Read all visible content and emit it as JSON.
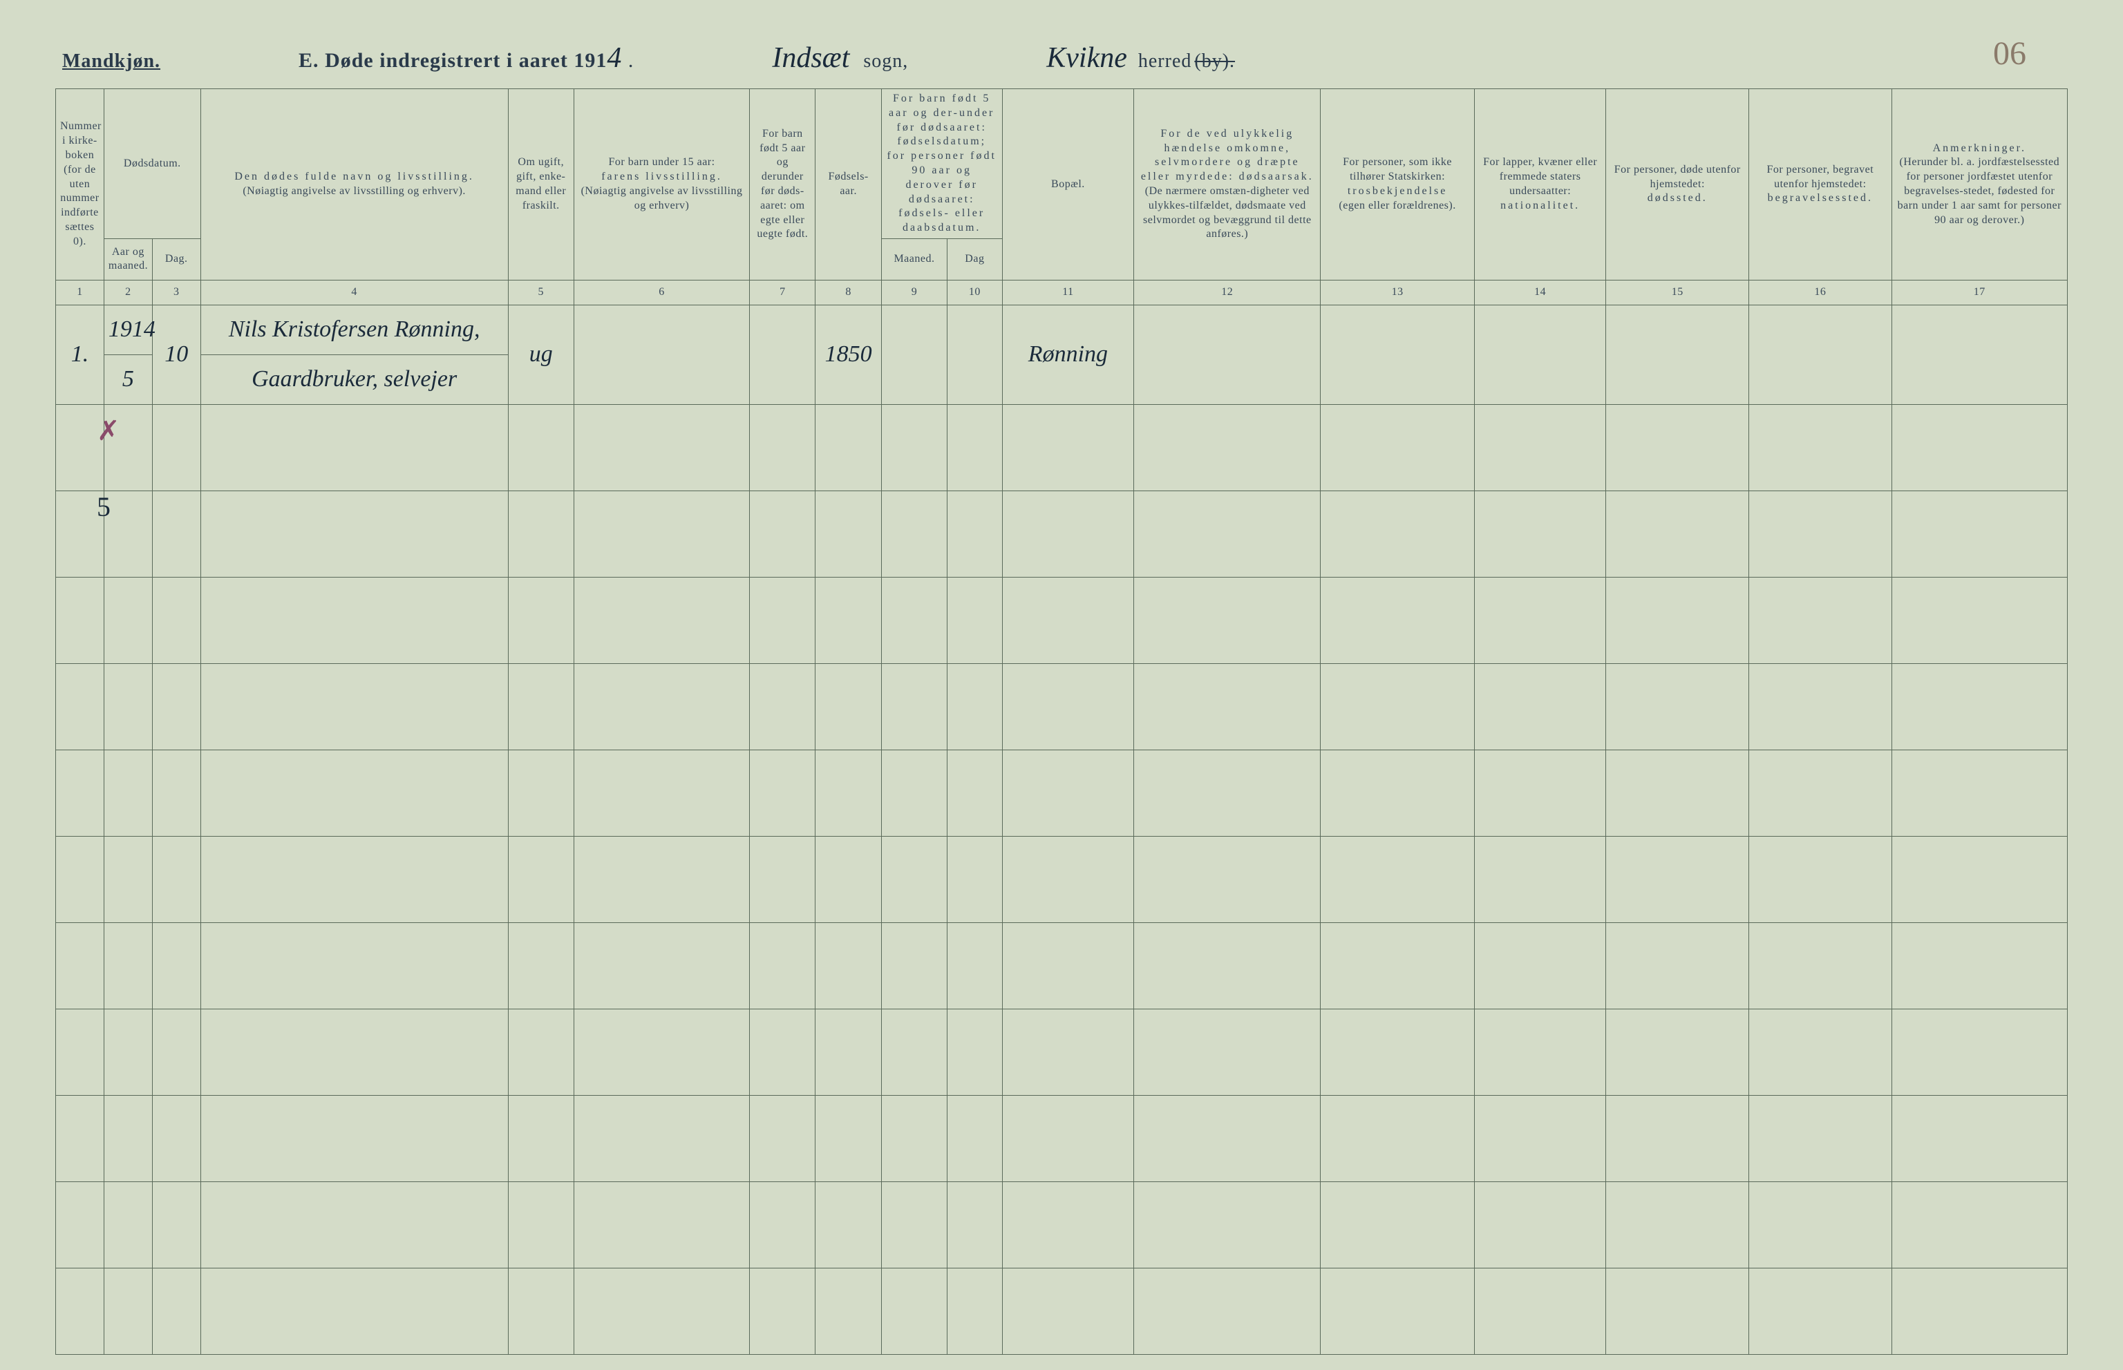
{
  "header": {
    "gender_label": "Mandkjøn.",
    "title_prefix": "E.",
    "title_text": "Døde indregistrert i aaret 191",
    "year_suffix": "4",
    "sogn_value": "Indsæt",
    "sogn_label": "sogn,",
    "herred_value": "Kvikne",
    "herred_label": "herred",
    "herred_struck": "(by).",
    "page_number": "06"
  },
  "columns": {
    "c1": {
      "header": "Nummer i kirke-boken (for de uten nummer indførte sættes 0).",
      "num": "1"
    },
    "c2_3": {
      "header": "Dødsdatum.",
      "sub_a": "Aar og maaned.",
      "sub_b": "Dag.",
      "num_a": "2",
      "num_b": "3"
    },
    "c4": {
      "header": "Den dødes fulde navn og livsstilling.",
      "sub": "(Nøiagtig angivelse av livsstilling og erhverv).",
      "num": "4"
    },
    "c5": {
      "header": "Om ugift, gift, enke-mand eller fraskilt.",
      "num": "5"
    },
    "c6": {
      "header": "For barn under 15 aar:",
      "sub": "farens livsstilling.",
      "sub2": "(Nøiagtig angivelse av livsstilling og erhverv)",
      "num": "6"
    },
    "c7": {
      "header": "For barn født 5 aar og derunder før døds-aaret: om egte eller uegte født.",
      "num": "7"
    },
    "c8": {
      "header": "Fødsels-aar.",
      "num": "8"
    },
    "c9_10": {
      "header": "For barn født 5 aar og der-under før dødsaaret: fødselsdatum; for personer født 90 aar og derover før dødsaaret: fødsels- eller daabsdatum.",
      "sub_a": "Maaned.",
      "sub_b": "Dag",
      "num_a": "9",
      "num_b": "10"
    },
    "c11": {
      "header": "Bopæl.",
      "num": "11"
    },
    "c12": {
      "header": "For de ved ulykkelig hændelse omkomne, selvmordere og dræpte eller myrdede: dødsaarsak.",
      "sub": "(De nærmere omstæn-digheter ved ulykkes-tilfældet, dødsmaate ved selvmordet og bevæggrund til dette anføres.)",
      "num": "12"
    },
    "c13": {
      "header": "For personer, som ikke tilhører Statskirken:",
      "sub": "trosbekjendelse",
      "sub2": "(egen eller forældrenes).",
      "num": "13"
    },
    "c14": {
      "header": "For lapper, kvæner eller fremmede staters undersaatter:",
      "sub": "nationalitet.",
      "num": "14"
    },
    "c15": {
      "header": "For personer, døde utenfor hjemstedet:",
      "sub": "dødssted.",
      "num": "15"
    },
    "c16": {
      "header": "For personer, begravet utenfor hjemstedet:",
      "sub": "begravelsessted.",
      "num": "16"
    },
    "c17": {
      "header": "Anmerkninger.",
      "sub": "(Herunder bl. a. jordfæstelsessted for personer jordfæstet utenfor begravelses-stedet, fødested for barn under 1 aar samt for personer 90 aar og derover.)",
      "num": "17"
    }
  },
  "entry": {
    "row_num": "1.",
    "year": "1914",
    "month": "5",
    "day": "10",
    "name_line1": "Nils Kristofersen Rønning,",
    "name_line2": "Gaardbruker, selvejer",
    "status": "ug",
    "birth_year": "1850",
    "residence": "Rønning"
  },
  "side_marks": {
    "mark1": "✗",
    "mark2": "5"
  },
  "style": {
    "background_color": "#d4dcc8",
    "border_color": "#5a6a5a",
    "text_color": "#2a3a4a",
    "header_text_color": "#3a4a5a",
    "handwriting_color": "#1a2a3a",
    "page_number_color": "#8a7a6a"
  }
}
